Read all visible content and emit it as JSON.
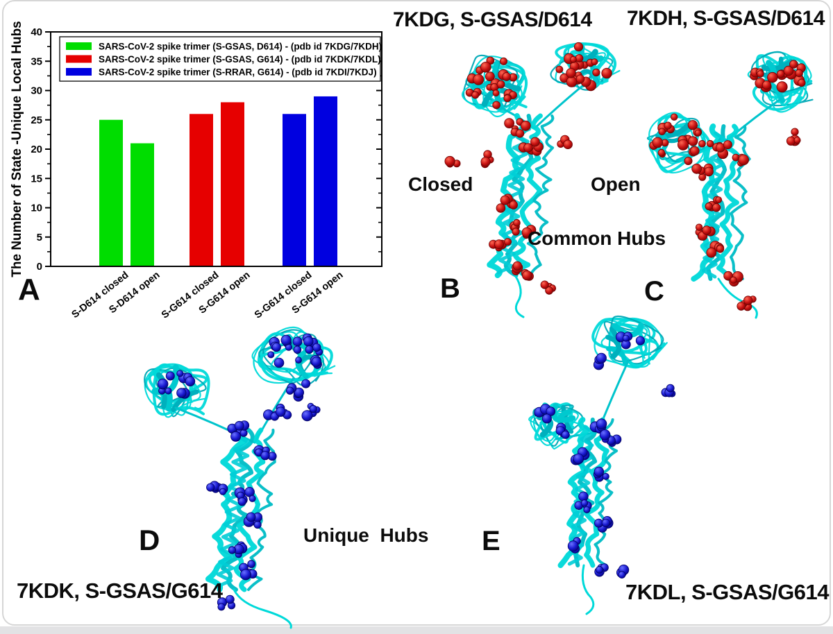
{
  "chart_data": {
    "type": "bar",
    "title": "",
    "xlabel": "",
    "ylabel": "The  Number of State -Unique Local Hubs",
    "categories": [
      "S-D614 closed",
      "S-D614 open",
      "S-G614 closed",
      "S-G614 open",
      "S-G614 closed",
      "S-G614 open"
    ],
    "values": [
      25,
      21,
      26,
      28,
      26,
      29
    ],
    "series": [
      {
        "name": "SARS-CoV-2 spike trimer (S-GSAS, D614) - (pdb id 7KDG/7KDH)",
        "color": "#00dd00",
        "categories": [
          "S-D614 closed",
          "S-D614 open"
        ],
        "values": [
          25,
          21
        ]
      },
      {
        "name": "SARS-CoV-2 spike trimer (S-GSAS, G614) - (pdb id 7KDK/7KDL)",
        "color": "#e60000",
        "categories": [
          "S-G614 closed",
          "S-G614 open"
        ],
        "values": [
          26,
          28
        ]
      },
      {
        "name": "SARS-CoV-2 spike trimer (S-RRAR, G614) - (pdb id 7KDI/7KDJ)",
        "color": "#0000e0",
        "categories": [
          "S-G614 closed",
          "S-G614 open"
        ],
        "values": [
          26,
          29
        ]
      }
    ],
    "ylim": [
      0,
      40
    ],
    "yticks": [
      0,
      5,
      10,
      15,
      20,
      25,
      30,
      35,
      40
    ],
    "minor_tick_step": 2.5,
    "grid": false,
    "legend_position": "top-left-inside"
  },
  "panels": {
    "a": {
      "letter": "A"
    },
    "b": {
      "letter": "B",
      "title": "7KDG, S-GSAS/D614",
      "state": "Closed"
    },
    "c": {
      "letter": "C",
      "title": "7KDH, S-GSAS/D614",
      "state": "Open"
    },
    "d": {
      "letter": "D",
      "title": "7KDK, S-GSAS/G614"
    },
    "e": {
      "letter": "E",
      "title": "7KDL, S-GSAS/G614"
    }
  },
  "annotations": {
    "common_hubs": "Common Hubs",
    "unique_hubs": "Unique  Hubs"
  },
  "colors": {
    "bar_green": "#00dd00",
    "bar_red": "#e60000",
    "bar_blue": "#0000e0",
    "ribbon_cyan": "#00d9d9",
    "ribbon_teal": "#00a9b6",
    "sphere_red": "#c01010",
    "sphere_red_edge": "#6e0202",
    "sphere_blue": "#1a1ace",
    "sphere_blue_edge": "#000068",
    "axis_black": "#000000"
  }
}
